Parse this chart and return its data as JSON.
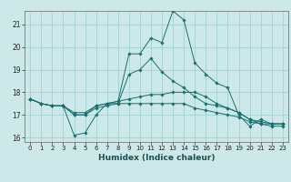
{
  "xlabel": "Humidex (Indice chaleur)",
  "ylabel": "",
  "background_color": "#cce8e8",
  "grid_color": "#99cccc",
  "line_color": "#1a7070",
  "xlim": [
    -0.5,
    23.5
  ],
  "ylim": [
    15.8,
    21.6
  ],
  "yticks": [
    16,
    17,
    18,
    19,
    20,
    21
  ],
  "xticks": [
    0,
    1,
    2,
    3,
    4,
    5,
    6,
    7,
    8,
    9,
    10,
    11,
    12,
    13,
    14,
    15,
    16,
    17,
    18,
    19,
    20,
    21,
    22,
    23
  ],
  "series": [
    [
      17.7,
      17.5,
      17.4,
      17.4,
      16.1,
      16.2,
      17.0,
      17.5,
      17.6,
      19.7,
      19.7,
      20.4,
      20.2,
      21.6,
      21.2,
      19.3,
      18.8,
      18.4,
      18.2,
      17.0,
      16.5,
      16.8,
      16.6,
      16.6
    ],
    [
      17.7,
      17.5,
      17.4,
      17.4,
      17.0,
      17.0,
      17.4,
      17.5,
      17.6,
      17.7,
      17.8,
      17.9,
      17.9,
      18.0,
      18.0,
      18.0,
      17.8,
      17.5,
      17.3,
      17.1,
      16.8,
      16.6,
      16.6,
      16.6
    ],
    [
      17.7,
      17.5,
      17.4,
      17.4,
      17.1,
      17.1,
      17.4,
      17.5,
      17.5,
      17.5,
      17.5,
      17.5,
      17.5,
      17.5,
      17.5,
      17.3,
      17.2,
      17.1,
      17.0,
      16.9,
      16.7,
      16.6,
      16.5,
      16.5
    ],
    [
      17.7,
      17.5,
      17.4,
      17.4,
      17.0,
      17.0,
      17.3,
      17.4,
      17.5,
      18.8,
      19.0,
      19.5,
      18.9,
      18.5,
      18.2,
      17.8,
      17.5,
      17.4,
      17.3,
      17.1,
      16.8,
      16.7,
      16.6,
      16.6
    ]
  ]
}
